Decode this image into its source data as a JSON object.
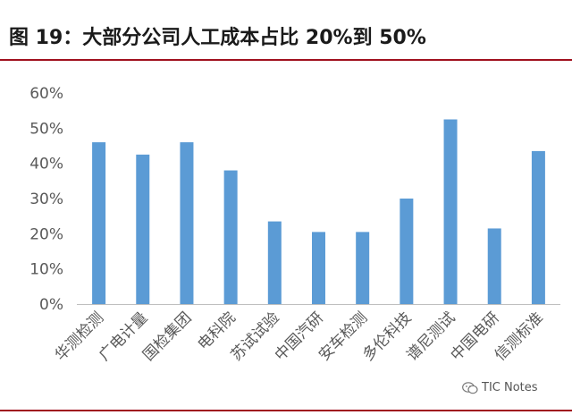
{
  "figure": {
    "title": "图 19：大部分公司人工成本占比 20%到 50%"
  },
  "colors": {
    "bar": "#5b9bd5",
    "rule": "#a0101e",
    "axis_text": "#595959",
    "axis_line": "#bfbfbf"
  },
  "watermark": {
    "text": "TIC Notes",
    "icon": "wechat-icon"
  },
  "chart_data": {
    "type": "bar",
    "categories": [
      "华测检测",
      "广电计量",
      "国检集团",
      "电科院",
      "苏试试验",
      "中国汽研",
      "安车检测",
      "多伦科技",
      "谱尼测试",
      "中国电研",
      "信测标准"
    ],
    "values": [
      46,
      42.5,
      46,
      38,
      23.5,
      20.5,
      20.5,
      30,
      52.5,
      21.5,
      43.5
    ],
    "yticks": [
      "0%",
      "10%",
      "20%",
      "30%",
      "40%",
      "50%",
      "60%"
    ],
    "ylim": [
      0,
      60
    ],
    "legend": "none",
    "grid": false
  }
}
